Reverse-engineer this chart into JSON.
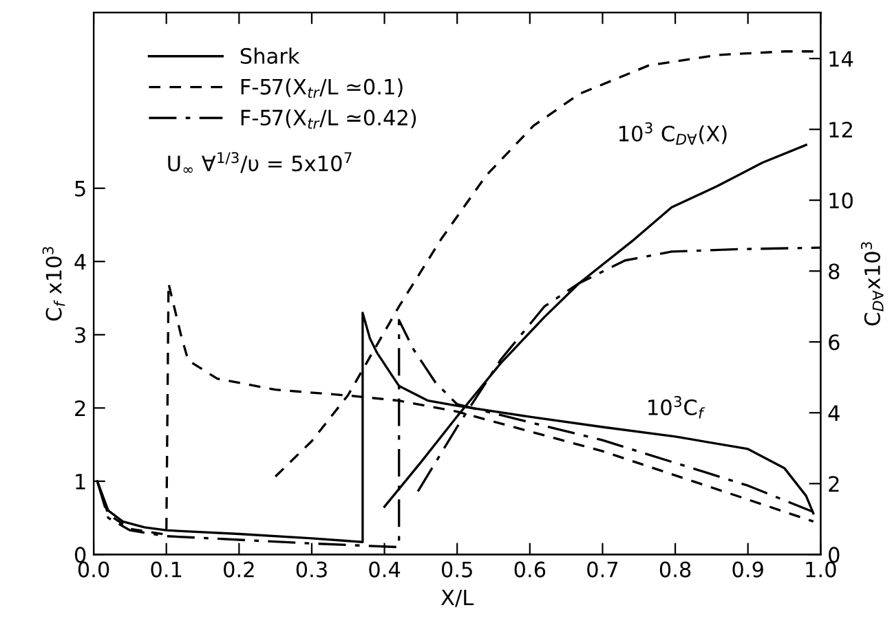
{
  "chart_data": {
    "type": "line",
    "xlabel": "X/L",
    "ylabel": "C$_{f}$ x10$^{3}$",
    "y2label": "C$_{D∀}$x10$^{3}$",
    "xlim": [
      0,
      1.0
    ],
    "xticks": [
      {
        "value": 0,
        "label": "0.0"
      },
      0.1,
      0.2,
      0.3,
      0.4,
      0.5,
      0.6,
      0.7,
      0.8,
      0.9,
      {
        "value": 1.0,
        "label": "1.0"
      }
    ],
    "ylim": [
      0,
      7.4
    ],
    "yticks": [
      0,
      1,
      2,
      3,
      4,
      5
    ],
    "y2lim": [
      0,
      15.3
    ],
    "y2ticks": [
      0,
      2,
      4,
      6,
      8,
      10,
      12,
      14
    ],
    "legend": "top left",
    "grid": false,
    "annotations": [
      "U$_{∞}$ ∀$^{1/3}$/υ = 5x10$^{7}$",
      "10$^{3}$ C$_{D∀}$(X)",
      "10$^{3}$C$_{f}$"
    ],
    "series": [
      {
        "name": "Shark",
        "color": "#000000",
        "line_style": "solid",
        "x": [
          0.005,
          0.02,
          0.04,
          0.07,
          0.1,
          0.2,
          0.3,
          0.37,
          0.37,
          0.38,
          0.39,
          0.42,
          0.46,
          0.5,
          0.6,
          0.7,
          0.8,
          0.9,
          0.95,
          0.98,
          0.99
        ],
        "values": [
          1.0,
          0.6,
          0.45,
          0.37,
          0.33,
          0.28,
          0.22,
          0.17,
          3.3,
          2.95,
          2.75,
          2.3,
          2.1,
          2.03,
          1.88,
          1.74,
          1.61,
          1.44,
          1.18,
          0.8,
          0.56
        ]
      },
      {
        "name": "F-57(X$_{tr}$/L ≃0.1)",
        "color": "#000000",
        "line_style": "dashed",
        "x": [
          0.005,
          0.02,
          0.05,
          0.1,
          0.103,
          0.12,
          0.13,
          0.17,
          0.25,
          0.35,
          0.42,
          0.5,
          0.7,
          0.9,
          0.99
        ],
        "values": [
          1.0,
          0.55,
          0.35,
          0.27,
          3.7,
          3.0,
          2.65,
          2.4,
          2.25,
          2.17,
          2.1,
          1.95,
          1.41,
          0.75,
          0.45
        ]
      },
      {
        "name": "F-57(X$_{tr}$/L ≃0.42)",
        "color": "#000000",
        "line_style": "dashdot",
        "x": [
          0.005,
          0.02,
          0.05,
          0.1,
          0.2,
          0.3,
          0.42,
          0.42,
          0.44,
          0.47,
          0.5,
          0.7,
          0.9,
          0.99
        ],
        "values": [
          1.0,
          0.5,
          0.33,
          0.25,
          0.2,
          0.15,
          0.1,
          3.2,
          2.8,
          2.35,
          2.05,
          1.56,
          0.94,
          0.58
        ]
      },
      {
        "color": "#000000",
        "line_style": "dashed",
        "axis": "y2",
        "x": [
          0.25,
          0.3,
          0.35,
          0.42,
          0.478,
          0.54,
          0.605,
          0.668,
          0.763,
          0.858,
          0.95,
          1.0
        ],
        "values": [
          2.2,
          3.2,
          4.5,
          7.0,
          8.9,
          10.7,
          12.1,
          13.0,
          13.8,
          14.1,
          14.2,
          14.2
        ]
      },
      {
        "color": "#000000",
        "line_style": "solid",
        "axis": "y2",
        "x": [
          0.4,
          0.45,
          0.5,
          0.56,
          0.62,
          0.668,
          0.744,
          0.795,
          0.858,
          0.92,
          0.98
        ],
        "values": [
          1.35,
          2.6,
          3.9,
          5.4,
          6.7,
          7.66,
          8.9,
          9.8,
          10.4,
          11.06,
          11.56
        ]
      },
      {
        "color": "#000000",
        "line_style": "dashdot",
        "axis": "y2",
        "x": [
          0.446,
          0.5,
          0.56,
          0.62,
          0.668,
          0.731,
          0.795,
          0.89,
          1.0
        ],
        "values": [
          1.78,
          3.6,
          5.5,
          7.0,
          7.66,
          8.3,
          8.55,
          8.62,
          8.66
        ]
      }
    ]
  }
}
